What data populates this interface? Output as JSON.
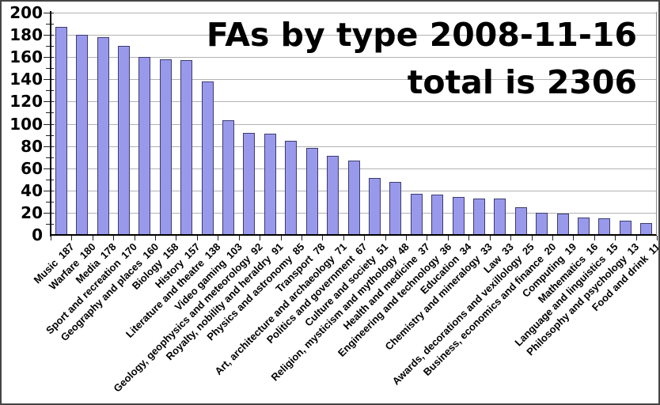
{
  "chart_data": {
    "type": "bar",
    "title_lines": [
      "FAs by type 2008-11-16",
      "total is 2306"
    ],
    "total": 2306,
    "categories": [
      "Music",
      "Warfare",
      "Media",
      "Sport and recreation",
      "Geography and places",
      "Biology",
      "History",
      "Literature and theatre",
      "Video gaming",
      "Geology, geophysics and meteorology",
      "Royalty, nobility and heraldry",
      "Physics and astronomy",
      "Transport",
      "Art, architecture and archaeology",
      "Politics and government",
      "Culture and society",
      "Religion, mysticism and mythology",
      "Health and medicine",
      "Engineering and technology",
      "Education",
      "Chemistry and mineralogy",
      "Law",
      "Awards, decorations and vexillology",
      "Business, economics and finance",
      "Computing",
      "Mathematics",
      "Language and linguistics",
      "Philosophy and psychology",
      "Food and drink"
    ],
    "values": [
      187,
      180,
      178,
      170,
      160,
      158,
      157,
      138,
      103,
      92,
      91,
      85,
      78,
      71,
      67,
      51,
      48,
      37,
      36,
      34,
      33,
      33,
      25,
      20,
      19,
      16,
      15,
      13,
      11
    ],
    "ylim": [
      0,
      200
    ],
    "ytick_step": 20,
    "ytick_minor_step": 10,
    "grid": "horizontal",
    "legend": false,
    "xlabel_rotation_deg": 45,
    "xlabel_format": "category + value",
    "colors": {
      "bar_fill": "#9999EC",
      "bar_border": "#3C3C6E",
      "gridline": "#B2B2B2",
      "axis": "#000000",
      "text": "#000000",
      "background": "#FFFFFF"
    }
  }
}
